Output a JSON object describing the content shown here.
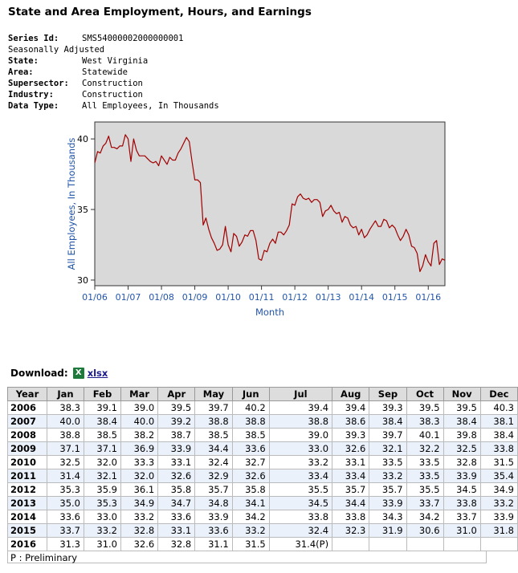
{
  "title": "State and Area Employment, Hours, and Earnings",
  "metadata": [
    {
      "key": "Series Id:",
      "value": "SMS54000002000000001"
    },
    {
      "key": "Seasonally Adjusted",
      "value": ""
    },
    {
      "key": "State:",
      "value": "West Virginia"
    },
    {
      "key": "Area:",
      "value": "Statewide"
    },
    {
      "key": "Supersector:",
      "value": "Construction"
    },
    {
      "key": "Industry:",
      "value": "Construction"
    },
    {
      "key": "Data Type:",
      "value": "All Employees, In Thousands"
    }
  ],
  "download": {
    "label": "Download:",
    "icon": "excel-icon",
    "link": "xlsx"
  },
  "colors": {
    "line": "#a00000",
    "plot_bg": "#d9d9d9",
    "axis_text": "#2255aa"
  },
  "chart_data": {
    "type": "line",
    "xlabel": "Month",
    "ylabel": "All Employees, In Thousands",
    "x_ticks": [
      "01/06",
      "01/07",
      "01/08",
      "01/09",
      "01/10",
      "01/11",
      "01/12",
      "01/13",
      "01/14",
      "01/15",
      "01/16"
    ],
    "y_ticks": [
      30,
      35,
      40
    ],
    "ylim": [
      29.6,
      41.2
    ],
    "grid": false,
    "start_month": "01/06",
    "series": [
      {
        "values": [
          38.3,
          39.1,
          39.0,
          39.5,
          39.7,
          40.2,
          39.4,
          39.4,
          39.3,
          39.5,
          39.5,
          40.3,
          40.0,
          38.4,
          40.0,
          39.2,
          38.8,
          38.8,
          38.8,
          38.6,
          38.4,
          38.3,
          38.4,
          38.1,
          38.8,
          38.5,
          38.2,
          38.7,
          38.5,
          38.5,
          39.0,
          39.3,
          39.7,
          40.1,
          39.8,
          38.4,
          37.1,
          37.1,
          36.9,
          33.9,
          34.4,
          33.6,
          33.0,
          32.6,
          32.1,
          32.2,
          32.5,
          33.8,
          32.5,
          32.0,
          33.3,
          33.1,
          32.4,
          32.7,
          33.2,
          33.1,
          33.5,
          33.5,
          32.8,
          31.5,
          31.4,
          32.1,
          32.0,
          32.6,
          32.9,
          32.6,
          33.4,
          33.4,
          33.2,
          33.5,
          33.9,
          35.4,
          35.3,
          35.9,
          36.1,
          35.8,
          35.7,
          35.8,
          35.5,
          35.7,
          35.7,
          35.5,
          34.5,
          34.9,
          35.0,
          35.3,
          34.9,
          34.7,
          34.8,
          34.1,
          34.5,
          34.4,
          33.9,
          33.7,
          33.8,
          33.2,
          33.6,
          33.0,
          33.2,
          33.6,
          33.9,
          34.2,
          33.8,
          33.8,
          34.3,
          34.2,
          33.7,
          33.9,
          33.7,
          33.2,
          32.8,
          33.1,
          33.6,
          33.2,
          32.4,
          32.3,
          31.9,
          30.6,
          31.0,
          31.8,
          31.3,
          31.0,
          32.6,
          32.8,
          31.1,
          31.5,
          31.4
        ]
      }
    ]
  },
  "table": {
    "headers": [
      "Year",
      "Jan",
      "Feb",
      "Mar",
      "Apr",
      "May",
      "Jun",
      "Jul",
      "Aug",
      "Sep",
      "Oct",
      "Nov",
      "Dec"
    ],
    "rows": [
      [
        "2006",
        "38.3",
        "39.1",
        "39.0",
        "39.5",
        "39.7",
        "40.2",
        "39.4",
        "39.4",
        "39.3",
        "39.5",
        "39.5",
        "40.3"
      ],
      [
        "2007",
        "40.0",
        "38.4",
        "40.0",
        "39.2",
        "38.8",
        "38.8",
        "38.8",
        "38.6",
        "38.4",
        "38.3",
        "38.4",
        "38.1"
      ],
      [
        "2008",
        "38.8",
        "38.5",
        "38.2",
        "38.7",
        "38.5",
        "38.5",
        "39.0",
        "39.3",
        "39.7",
        "40.1",
        "39.8",
        "38.4"
      ],
      [
        "2009",
        "37.1",
        "37.1",
        "36.9",
        "33.9",
        "34.4",
        "33.6",
        "33.0",
        "32.6",
        "32.1",
        "32.2",
        "32.5",
        "33.8"
      ],
      [
        "2010",
        "32.5",
        "32.0",
        "33.3",
        "33.1",
        "32.4",
        "32.7",
        "33.2",
        "33.1",
        "33.5",
        "33.5",
        "32.8",
        "31.5"
      ],
      [
        "2011",
        "31.4",
        "32.1",
        "32.0",
        "32.6",
        "32.9",
        "32.6",
        "33.4",
        "33.4",
        "33.2",
        "33.5",
        "33.9",
        "35.4"
      ],
      [
        "2012",
        "35.3",
        "35.9",
        "36.1",
        "35.8",
        "35.7",
        "35.8",
        "35.5",
        "35.7",
        "35.7",
        "35.5",
        "34.5",
        "34.9"
      ],
      [
        "2013",
        "35.0",
        "35.3",
        "34.9",
        "34.7",
        "34.8",
        "34.1",
        "34.5",
        "34.4",
        "33.9",
        "33.7",
        "33.8",
        "33.2"
      ],
      [
        "2014",
        "33.6",
        "33.0",
        "33.2",
        "33.6",
        "33.9",
        "34.2",
        "33.8",
        "33.8",
        "34.3",
        "34.2",
        "33.7",
        "33.9"
      ],
      [
        "2015",
        "33.7",
        "33.2",
        "32.8",
        "33.1",
        "33.6",
        "33.2",
        "32.4",
        "32.3",
        "31.9",
        "30.6",
        "31.0",
        "31.8"
      ],
      [
        "2016",
        "31.3",
        "31.0",
        "32.6",
        "32.8",
        "31.1",
        "31.5",
        "31.4(P)",
        "",
        "",
        "",
        "",
        ""
      ]
    ]
  },
  "footnote": "P : Preliminary"
}
